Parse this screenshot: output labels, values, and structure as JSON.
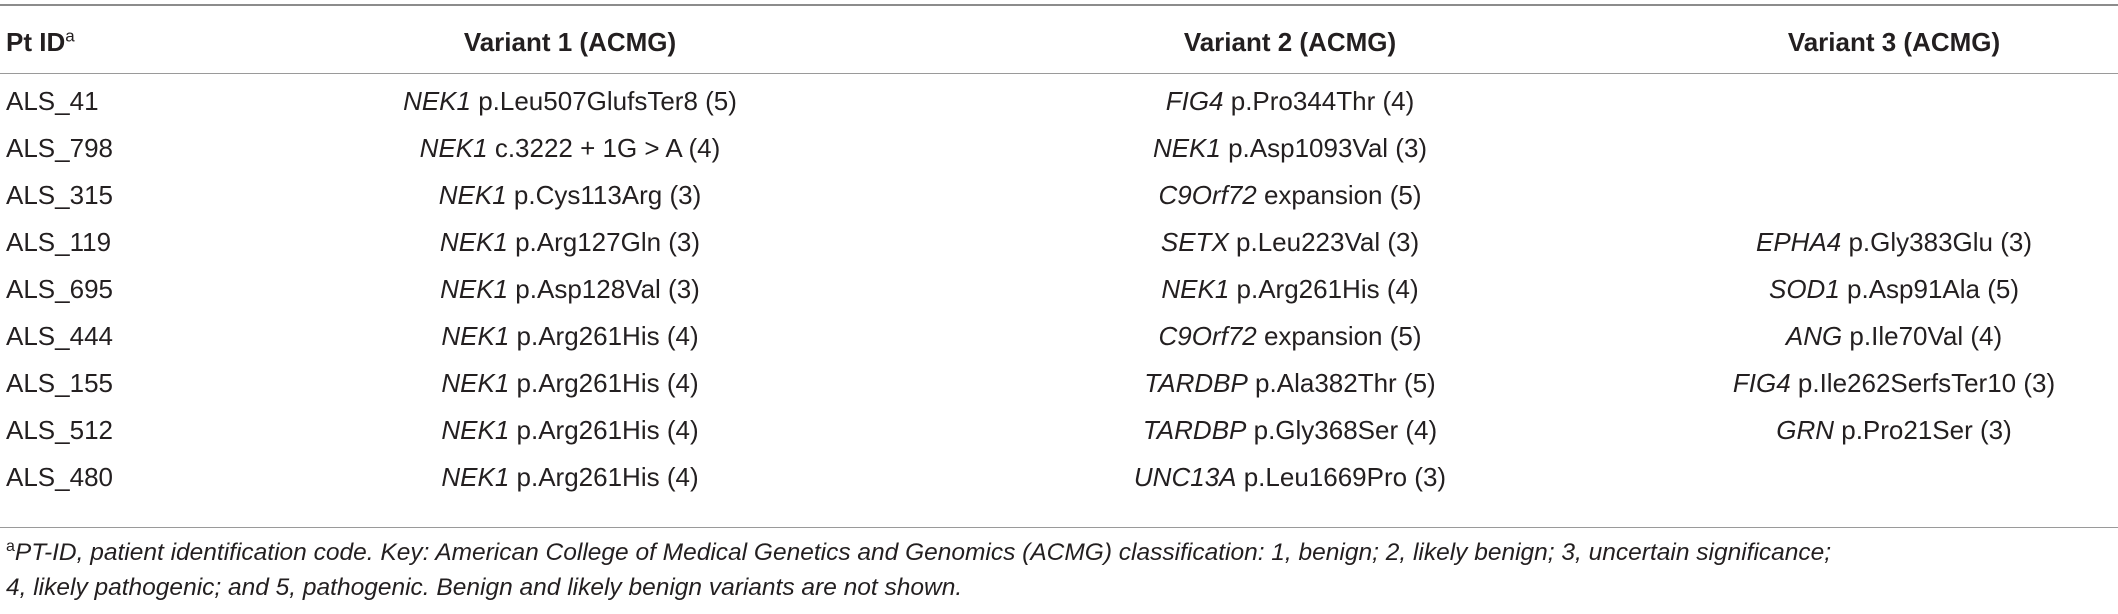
{
  "header": {
    "pt_id": "Pt ID",
    "pt_id_sup": "a",
    "variant1": "Variant 1 (ACMG)",
    "variant2": "Variant 2 (ACMG)",
    "variant3": "Variant 3 (ACMG)"
  },
  "rows": [
    {
      "id": "ALS_41",
      "v1": {
        "gene": "NEK1",
        "rest": " p.Leu507GlufsTer8 (5)"
      },
      "v2": {
        "gene": "FIG4",
        "rest": " p.Pro344Thr (4)"
      },
      "v3": {
        "gene": "",
        "rest": ""
      }
    },
    {
      "id": "ALS_798",
      "v1": {
        "gene": "NEK1",
        "rest": " c.3222 + 1G > A (4)"
      },
      "v2": {
        "gene": "NEK1",
        "rest": " p.Asp1093Val (3)"
      },
      "v3": {
        "gene": "",
        "rest": ""
      }
    },
    {
      "id": "ALS_315",
      "v1": {
        "gene": "NEK1",
        "rest": " p.Cys113Arg (3)"
      },
      "v2": {
        "gene": "C9Orf72",
        "rest": " expansion (5)"
      },
      "v3": {
        "gene": "",
        "rest": ""
      }
    },
    {
      "id": "ALS_119",
      "v1": {
        "gene": "NEK1",
        "rest": " p.Arg127Gln (3)"
      },
      "v2": {
        "gene": "SETX",
        "rest": " p.Leu223Val (3)"
      },
      "v3": {
        "gene": "EPHA4",
        "rest": " p.Gly383Glu (3)"
      }
    },
    {
      "id": "ALS_695",
      "v1": {
        "gene": "NEK1",
        "rest": " p.Asp128Val (3)"
      },
      "v2": {
        "gene": "NEK1",
        "rest": " p.Arg261His (4)"
      },
      "v3": {
        "gene": "SOD1",
        "rest": " p.Asp91Ala (5)"
      }
    },
    {
      "id": "ALS_444",
      "v1": {
        "gene": "NEK1",
        "rest": " p.Arg261His (4)"
      },
      "v2": {
        "gene": "C9Orf72",
        "rest": " expansion (5)"
      },
      "v3": {
        "gene": "ANG",
        "rest": " p.Ile70Val (4)"
      }
    },
    {
      "id": "ALS_155",
      "v1": {
        "gene": "NEK1",
        "rest": " p.Arg261His (4)"
      },
      "v2": {
        "gene": "TARDBP",
        "rest": " p.Ala382Thr (5)"
      },
      "v3": {
        "gene": "FIG4",
        "rest": " p.Ile262SerfsTer10 (3)"
      }
    },
    {
      "id": "ALS_512",
      "v1": {
        "gene": "NEK1",
        "rest": " p.Arg261His (4)"
      },
      "v2": {
        "gene": "TARDBP",
        "rest": " p.Gly368Ser (4)"
      },
      "v3": {
        "gene": "GRN",
        "rest": " p.Pro21Ser (3)"
      }
    },
    {
      "id": "ALS_480",
      "v1": {
        "gene": "NEK1",
        "rest": " p.Arg261His (4)"
      },
      "v2": {
        "gene": "UNC13A",
        "rest": " p.Leu1669Pro (3)"
      },
      "v3": {
        "gene": "",
        "rest": ""
      }
    }
  ],
  "footnote": {
    "sup": "a",
    "line1": "PT-ID, patient identification code. Key: American College of Medical Genetics and Genomics (ACMG) classification: 1, benign; 2, likely benign; 3, uncertain significance;",
    "line2": "4, likely pathogenic; and 5, pathogenic. Benign and likely benign variants are not shown."
  }
}
